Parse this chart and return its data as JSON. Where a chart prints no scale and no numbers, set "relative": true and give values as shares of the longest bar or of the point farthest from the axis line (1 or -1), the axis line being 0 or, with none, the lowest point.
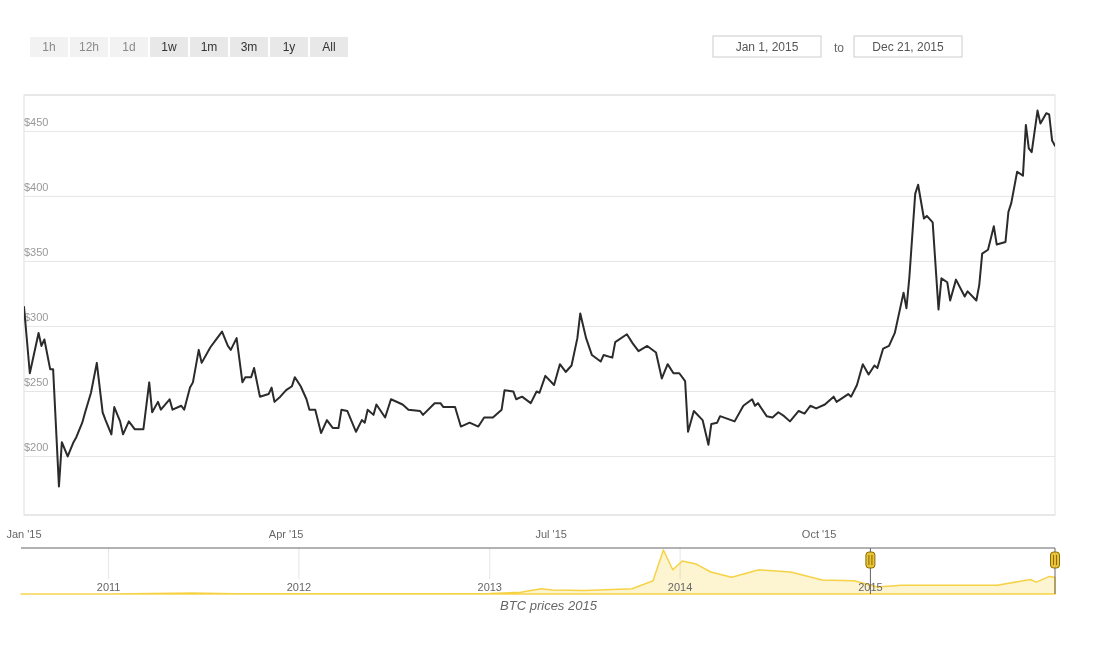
{
  "chart_data": [
    {
      "type": "line",
      "annotations": [
        "1h",
        "12h",
        "1d",
        "1w",
        "1m",
        "3m",
        "1y",
        "All",
        "Jan 1, 2015",
        "to",
        "Dec 21, 2015",
        "BTC prices 2015"
      ],
      "x": [
        "2015-01-01",
        "2015-01-03",
        "2015-01-06",
        "2015-01-07",
        "2015-01-08",
        "2015-01-10",
        "2015-01-11",
        "2015-01-13",
        "2015-01-14",
        "2015-01-16",
        "2015-01-18",
        "2015-01-19",
        "2015-01-21",
        "2015-01-22",
        "2015-01-24",
        "2015-01-26",
        "2015-01-28",
        "2015-01-29",
        "2015-01-31",
        "2015-02-01",
        "2015-02-03",
        "2015-02-04",
        "2015-02-06",
        "2015-02-08",
        "2015-02-11",
        "2015-02-13",
        "2015-02-14",
        "2015-02-16",
        "2015-02-17",
        "2015-02-20",
        "2015-02-21",
        "2015-02-24",
        "2015-02-25",
        "2015-02-27",
        "2015-02-28",
        "2015-03-02",
        "2015-03-03",
        "2015-03-06",
        "2015-03-08",
        "2015-03-10",
        "2015-03-12",
        "2015-03-13",
        "2015-03-15",
        "2015-03-17",
        "2015-03-18",
        "2015-03-20",
        "2015-03-21",
        "2015-03-23",
        "2015-03-26",
        "2015-03-27",
        "2015-03-28",
        "2015-03-30",
        "2015-04-01",
        "2015-04-03",
        "2015-04-04",
        "2015-04-06",
        "2015-04-08",
        "2015-04-09",
        "2015-04-11",
        "2015-04-13",
        "2015-04-15",
        "2015-04-17",
        "2015-04-19",
        "2015-04-20",
        "2015-04-22",
        "2015-04-25",
        "2015-04-27",
        "2015-04-28",
        "2015-04-29",
        "2015-05-01",
        "2015-05-02",
        "2015-05-05",
        "2015-05-07",
        "2015-05-11",
        "2015-05-13",
        "2015-05-17",
        "2015-05-18",
        "2015-05-22",
        "2015-05-24",
        "2015-05-25",
        "2015-05-29",
        "2015-05-31",
        "2015-06-03",
        "2015-06-06",
        "2015-06-08",
        "2015-06-11",
        "2015-06-14",
        "2015-06-15",
        "2015-06-18",
        "2015-06-19",
        "2015-06-21",
        "2015-06-24",
        "2015-06-26",
        "2015-06-27",
        "2015-06-29",
        "2015-07-02",
        "2015-07-04",
        "2015-07-06",
        "2015-07-08",
        "2015-07-10",
        "2015-07-11",
        "2015-07-13",
        "2015-07-15",
        "2015-07-18",
        "2015-07-19",
        "2015-07-22",
        "2015-07-23",
        "2015-07-27",
        "2015-07-29",
        "2015-07-31",
        "2015-08-03",
        "2015-08-06",
        "2015-08-08",
        "2015-08-10",
        "2015-08-12",
        "2015-08-14",
        "2015-08-16",
        "2015-08-17",
        "2015-08-19",
        "2015-08-22",
        "2015-08-24",
        "2015-08-25",
        "2015-08-27",
        "2015-08-28",
        "2015-09-02",
        "2015-09-05",
        "2015-09-08",
        "2015-09-09",
        "2015-09-10",
        "2015-09-13",
        "2015-09-15",
        "2015-09-17",
        "2015-09-19",
        "2015-09-21",
        "2015-09-24",
        "2015-09-26",
        "2015-09-28",
        "2015-09-30",
        "2015-10-03",
        "2015-10-06",
        "2015-10-07",
        "2015-10-11",
        "2015-10-12",
        "2015-10-14",
        "2015-10-16",
        "2015-10-18",
        "2015-10-20",
        "2015-10-21",
        "2015-10-23",
        "2015-10-25",
        "2015-10-27",
        "2015-10-30",
        "2015-10-31",
        "2015-11-01",
        "2015-11-03",
        "2015-11-04",
        "2015-11-06",
        "2015-11-07",
        "2015-11-09",
        "2015-11-11",
        "2015-11-12",
        "2015-11-14",
        "2015-11-15",
        "2015-11-17",
        "2015-11-20",
        "2015-11-21",
        "2015-11-24",
        "2015-11-25",
        "2015-11-26",
        "2015-11-28",
        "2015-11-30",
        "2015-12-01",
        "2015-12-04",
        "2015-12-05",
        "2015-12-06",
        "2015-12-08",
        "2015-12-10",
        "2015-12-11",
        "2015-12-12",
        "2015-12-13",
        "2015-12-15",
        "2015-12-16",
        "2015-12-18",
        "2015-12-19",
        "2015-12-20",
        "2015-12-21"
      ],
      "series": [
        {
          "color": "#2b2b2b",
          "values": [
            315,
            264,
            295,
            285,
            290,
            267,
            267,
            177,
            211,
            200,
            211,
            215,
            226,
            234,
            249,
            272,
            234,
            228,
            217,
            238,
            227,
            217,
            227,
            221,
            221,
            257,
            234,
            242,
            236,
            244,
            236,
            239,
            236,
            253,
            257,
            282,
            272,
            284,
            290,
            296,
            285,
            282,
            291,
            257,
            261,
            261,
            268,
            246,
            248,
            253,
            242,
            246,
            251,
            254,
            261,
            254,
            244,
            236,
            236,
            218,
            228,
            222,
            222,
            236,
            235,
            219,
            228,
            226,
            236,
            232,
            240,
            230,
            244,
            240,
            236,
            235,
            232,
            241,
            241,
            238,
            238,
            223,
            226,
            223,
            230,
            230,
            236,
            251,
            250,
            244,
            246,
            241,
            250,
            249,
            262,
            255,
            271,
            265,
            270,
            291,
            310,
            291,
            278,
            273,
            278,
            276,
            288,
            294,
            287,
            281,
            285,
            280,
            260,
            271,
            264,
            264,
            258,
            219,
            235,
            228,
            209,
            225,
            226,
            231,
            227,
            239,
            244,
            239,
            241,
            231,
            230,
            234,
            231,
            227,
            235,
            233,
            239,
            237,
            240,
            246,
            242,
            248,
            246,
            255,
            271,
            263,
            270,
            268,
            283,
            285,
            295,
            326,
            314,
            338,
            402,
            409,
            383,
            385,
            380,
            313,
            337,
            334,
            320,
            336,
            323,
            327,
            320,
            332,
            356,
            359,
            377,
            363,
            365,
            388,
            395,
            419,
            416,
            455,
            437,
            434,
            466,
            456,
            464,
            463,
            443,
            439
          ]
        }
      ],
      "xlim": [
        "2015-01-01",
        "2015-12-21"
      ],
      "ylim": [
        155,
        478
      ],
      "xticks": [
        {
          "value": "2015-01-01",
          "label": "Jan '15"
        },
        {
          "value": "2015-04-01",
          "label": "Apr '15"
        },
        {
          "value": "2015-07-01",
          "label": "Jul '15"
        },
        {
          "value": "2015-10-01",
          "label": "Oct '15"
        }
      ],
      "yticks": [
        {
          "value": 200,
          "label": "$200"
        },
        {
          "value": 250,
          "label": "$250"
        },
        {
          "value": 300,
          "label": "$300"
        },
        {
          "value": 350,
          "label": "$350"
        },
        {
          "value": 400,
          "label": "$400"
        },
        {
          "value": 450,
          "label": "$450"
        }
      ],
      "grid": "y",
      "legend": false
    },
    {
      "type": "area",
      "relative": true,
      "x": [
        "2010-07-17",
        "2011-01-01",
        "2011-06-10",
        "2011-09-01",
        "2012-01-01",
        "2012-06-01",
        "2013-01-01",
        "2013-03-01",
        "2013-04-10",
        "2013-05-01",
        "2013-07-01",
        "2013-10-01",
        "2013-11-10",
        "2013-11-30",
        "2013-12-18",
        "2014-01-05",
        "2014-02-01",
        "2014-03-01",
        "2014-04-10",
        "2014-06-01",
        "2014-08-01",
        "2014-10-01",
        "2014-12-01",
        "2015-01-14",
        "2015-03-01",
        "2015-06-01",
        "2015-09-01",
        "2015-11-04",
        "2015-11-15",
        "2015-12-10",
        "2015-12-21"
      ],
      "series": [
        {
          "color": "#f2c200",
          "values": [
            0,
            0,
            0.02,
            0.005,
            0.005,
            0.005,
            0.012,
            0.04,
            0.12,
            0.09,
            0.08,
            0.12,
            0.3,
            1,
            0.55,
            0.75,
            0.68,
            0.5,
            0.38,
            0.55,
            0.5,
            0.32,
            0.3,
            0.16,
            0.2,
            0.2,
            0.2,
            0.33,
            0.27,
            0.4,
            0.38
          ]
        }
      ],
      "xlim": [
        "2010-07-17",
        "2015-12-21"
      ],
      "xticks": [
        {
          "value": "2011-01-01",
          "label": "2011"
        },
        {
          "value": "2012-01-01",
          "label": "2012"
        },
        {
          "value": "2013-01-01",
          "label": "2013"
        },
        {
          "value": "2014-01-01",
          "label": "2014"
        },
        {
          "value": "2015-01-01",
          "label": "2015"
        }
      ],
      "grid": "x",
      "legend": false
    }
  ]
}
